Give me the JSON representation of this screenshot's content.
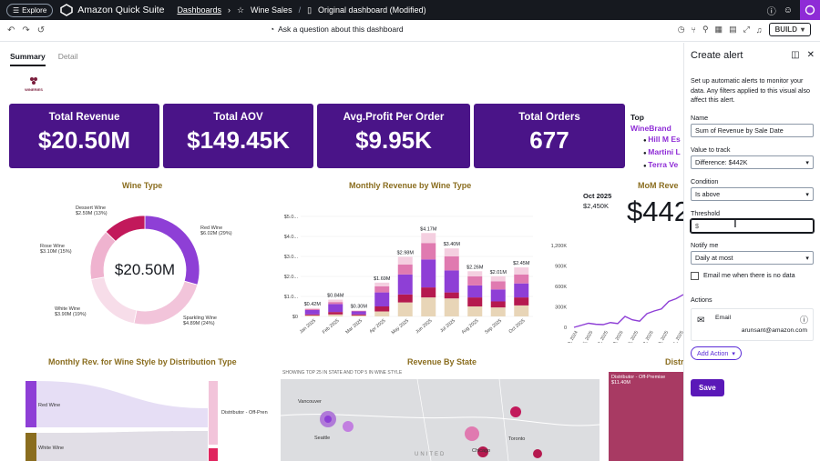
{
  "topbar": {
    "explore_label": "Explore",
    "app_title": "Amazon Quick Suite",
    "breadcrumb_dashboards": "Dashboards",
    "breadcrumb_wine_sales": "Wine Sales",
    "breadcrumb_current": "Original dashboard (Modified)"
  },
  "toolbar": {
    "ask_label": "Ask a question about this dashboard",
    "build_label": "BUILD"
  },
  "tabs": {
    "summary": "Summary",
    "detail": "Detail"
  },
  "brand_logo_text": "WINERIES",
  "kpis": [
    {
      "title": "Total Revenue",
      "value": "$20.50M"
    },
    {
      "title": "Total AOV",
      "value": "$149.45K"
    },
    {
      "title": "Avg.Profit Per Order",
      "value": "$9.95K"
    },
    {
      "title": "Total Orders",
      "value": "677"
    }
  ],
  "top_brands": {
    "title_prefix": "Top ",
    "title_highlight": "WineBrand",
    "items": [
      "Hill M Es",
      "Martini L",
      "Terra Ve"
    ]
  },
  "wine_type": {
    "title": "Wine Type",
    "center_value": "$20.50M",
    "labels": [
      {
        "name": "Dessert Wine",
        "value": "$2.59M (13%)"
      },
      {
        "name": "Red Wine",
        "value": "$6.02M (29%)"
      },
      {
        "name": "Rose Wine",
        "value": "$3.10M (15%)"
      },
      {
        "name": "White Wine",
        "value": "$3.90M (19%)"
      },
      {
        "name": "Sparkling Wine",
        "value": "$4.89M (24%)"
      }
    ]
  },
  "chart_data": [
    {
      "type": "pie",
      "title": "Wine Type",
      "categories": [
        "Red Wine",
        "Sparkling Wine",
        "White Wine",
        "Rose Wine",
        "Dessert Wine"
      ],
      "values": [
        6.02,
        4.89,
        3.9,
        3.1,
        2.59
      ],
      "colors": [
        "#8e3fd6",
        "#f2c4da",
        "#f7dde9",
        "#efb3cf",
        "#c2195b"
      ]
    },
    {
      "type": "bar",
      "title": "Monthly Revenue by Wine Type",
      "categories": [
        "Jan 2025",
        "Feb 2025",
        "Mar 2025",
        "Apr 2025",
        "May 2025",
        "Jun 2025",
        "Jul 2025",
        "Aug 2025",
        "Sep 2025",
        "Oct 2025"
      ],
      "totals_labels": [
        "$0.42M",
        "$0.84M",
        "$0.30M",
        "$1.69M",
        "$2.98M",
        "$4.17M",
        "$3.40M",
        "$2.26M",
        "$2.01M",
        "$2.45M"
      ],
      "totals": [
        0.42,
        0.84,
        0.3,
        1.69,
        2.98,
        4.17,
        3.4,
        2.26,
        2.01,
        2.45
      ],
      "series": [
        {
          "color": "#e8d5b7",
          "values": [
            0.05,
            0.1,
            0.05,
            0.25,
            0.7,
            0.95,
            0.9,
            0.5,
            0.45,
            0.55
          ]
        },
        {
          "color": "#b5194f",
          "values": [
            0.05,
            0.12,
            0.05,
            0.25,
            0.4,
            0.5,
            0.3,
            0.45,
            0.3,
            0.4
          ]
        },
        {
          "color": "#8e3fd6",
          "values": [
            0.22,
            0.4,
            0.15,
            0.7,
            1.0,
            1.4,
            1.1,
            0.6,
            0.6,
            0.7
          ]
        },
        {
          "color": "#e07ab0",
          "values": [
            0.05,
            0.1,
            0.03,
            0.3,
            0.5,
            0.82,
            0.7,
            0.45,
            0.4,
            0.45
          ]
        },
        {
          "color": "#f4cfe0",
          "values": [
            0.05,
            0.12,
            0.02,
            0.19,
            0.38,
            0.5,
            0.4,
            0.26,
            0.26,
            0.35
          ]
        }
      ],
      "y_ticks": [
        "$0",
        "$1.0...",
        "$2.0...",
        "$3.0...",
        "$4.0...",
        "$5.0..."
      ],
      "ylim": [
        0,
        5
      ]
    },
    {
      "type": "line",
      "title": "MoM Reve",
      "x_ticks": [
        "Dec 29, 2024",
        "Jan 5, 2025",
        "Jan 12, 2025",
        "Jan 19, 2025",
        "Jan 26, 2025",
        "Feb 2, 2025",
        "Feb 9, 2025",
        "Jul 1, 2025"
      ],
      "y_ticks": [
        "0",
        "300K",
        "600K",
        "900K",
        "1,200K"
      ],
      "values": [
        0,
        30,
        60,
        45,
        40,
        70,
        55,
        160,
        110,
        90,
        200,
        240,
        270,
        380,
        420,
        480
      ],
      "ylim": [
        0,
        1200
      ],
      "annotation_date": "Oct 2025",
      "annotation_value": "$2,450K",
      "big_value": "$442"
    }
  ],
  "monthly_rev_style": {
    "title": "Monthly Rev. for Wine Style by Distribution Type",
    "left_labels": [
      "Red Wine",
      "White Wine"
    ],
    "right_label": "Distributor - Off-Pren"
  },
  "revenue_by_state": {
    "title": "Revenue By State",
    "subtitle": "SHOWING TOP 25 IN STATE AND TOP 5 IN WINE STYLE",
    "cities": [
      "Vancouver",
      "Seattle",
      "Toronto",
      "Chicago"
    ],
    "country": "UNITED"
  },
  "distribution": {
    "title": "Distr",
    "label": "Distributor - Off-Premise",
    "value": "$11.40M"
  },
  "panel": {
    "title": "Create alert",
    "description": "Set up automatic alerts to monitor your data. Any filters applied to this visual also affect this alert.",
    "name_label": "Name",
    "name_value": "Sum of Revenue by Sale Date",
    "value_label": "Value to track",
    "value_value": "Difference: $442K",
    "condition_label": "Condition",
    "condition_value": "Is above",
    "threshold_label": "Threshold",
    "threshold_prefix": "$",
    "notify_label": "Notify me",
    "notify_value": "Daily at most",
    "email_label": "Email me when there is no data",
    "actions_label": "Actions",
    "email_title": "Email",
    "email_address": "arunsant@amazon.com",
    "add_action_label": "Add Action",
    "save_label": "Save"
  }
}
